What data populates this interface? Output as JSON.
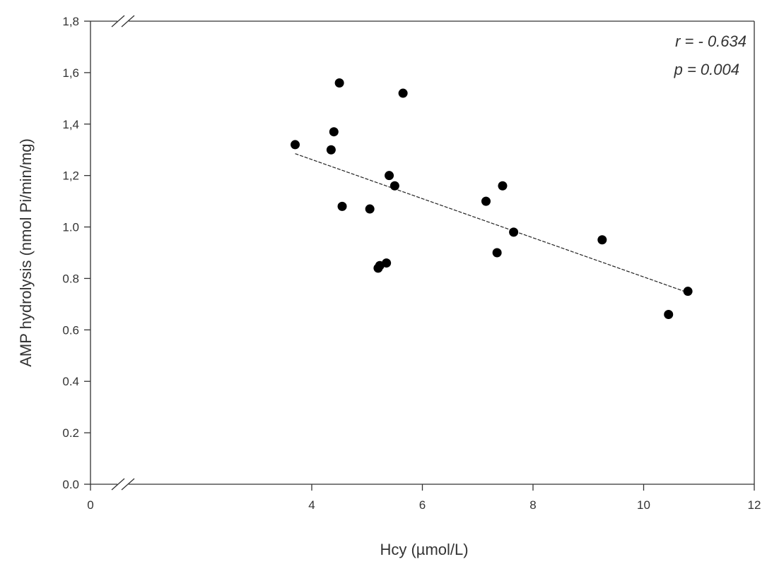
{
  "chart_data": {
    "type": "scatter",
    "xlabel": "Hcy (µmol/L)",
    "ylabel": "AMP hydrolysis (nmol Pi/min/mg)",
    "xlim": [
      0,
      12
    ],
    "ylim": [
      0,
      1.8
    ],
    "x_ticks": [
      "0",
      "4",
      "6",
      "8",
      "10",
      "12"
    ],
    "x_tick_values": [
      0,
      4,
      6,
      8,
      10,
      12
    ],
    "y_ticks": [
      "0.0",
      "0.2",
      "0.4",
      "0.6",
      "0.8",
      "1.0",
      "1,2",
      "1,4",
      "1,6",
      "1,8"
    ],
    "y_tick_values": [
      0,
      0.2,
      0.4,
      0.6,
      0.8,
      1.0,
      1.2,
      1.4,
      1.6,
      1.8
    ],
    "x_axis_break": true,
    "y_axis_break": true,
    "grid": false,
    "points": [
      {
        "x": 3.7,
        "y": 1.32
      },
      {
        "x": 4.35,
        "y": 1.3
      },
      {
        "x": 4.4,
        "y": 1.37
      },
      {
        "x": 4.5,
        "y": 1.56
      },
      {
        "x": 4.55,
        "y": 1.08
      },
      {
        "x": 5.05,
        "y": 1.07
      },
      {
        "x": 5.2,
        "y": 0.84
      },
      {
        "x": 5.23,
        "y": 0.85
      },
      {
        "x": 5.35,
        "y": 0.86
      },
      {
        "x": 5.4,
        "y": 1.2
      },
      {
        "x": 5.5,
        "y": 1.16
      },
      {
        "x": 5.65,
        "y": 1.52
      },
      {
        "x": 7.15,
        "y": 1.1
      },
      {
        "x": 7.35,
        "y": 0.9
      },
      {
        "x": 7.45,
        "y": 1.16
      },
      {
        "x": 7.65,
        "y": 0.98
      },
      {
        "x": 9.25,
        "y": 0.95
      },
      {
        "x": 10.45,
        "y": 0.66
      },
      {
        "x": 10.8,
        "y": 0.75
      }
    ],
    "trendline": {
      "x": [
        3.7,
        10.8
      ],
      "y": [
        1.285,
        0.745
      ],
      "style": "dashed"
    },
    "annotations": [
      "r = - 0.634",
      "p = 0.004"
    ],
    "annotation_position": "top-right"
  }
}
